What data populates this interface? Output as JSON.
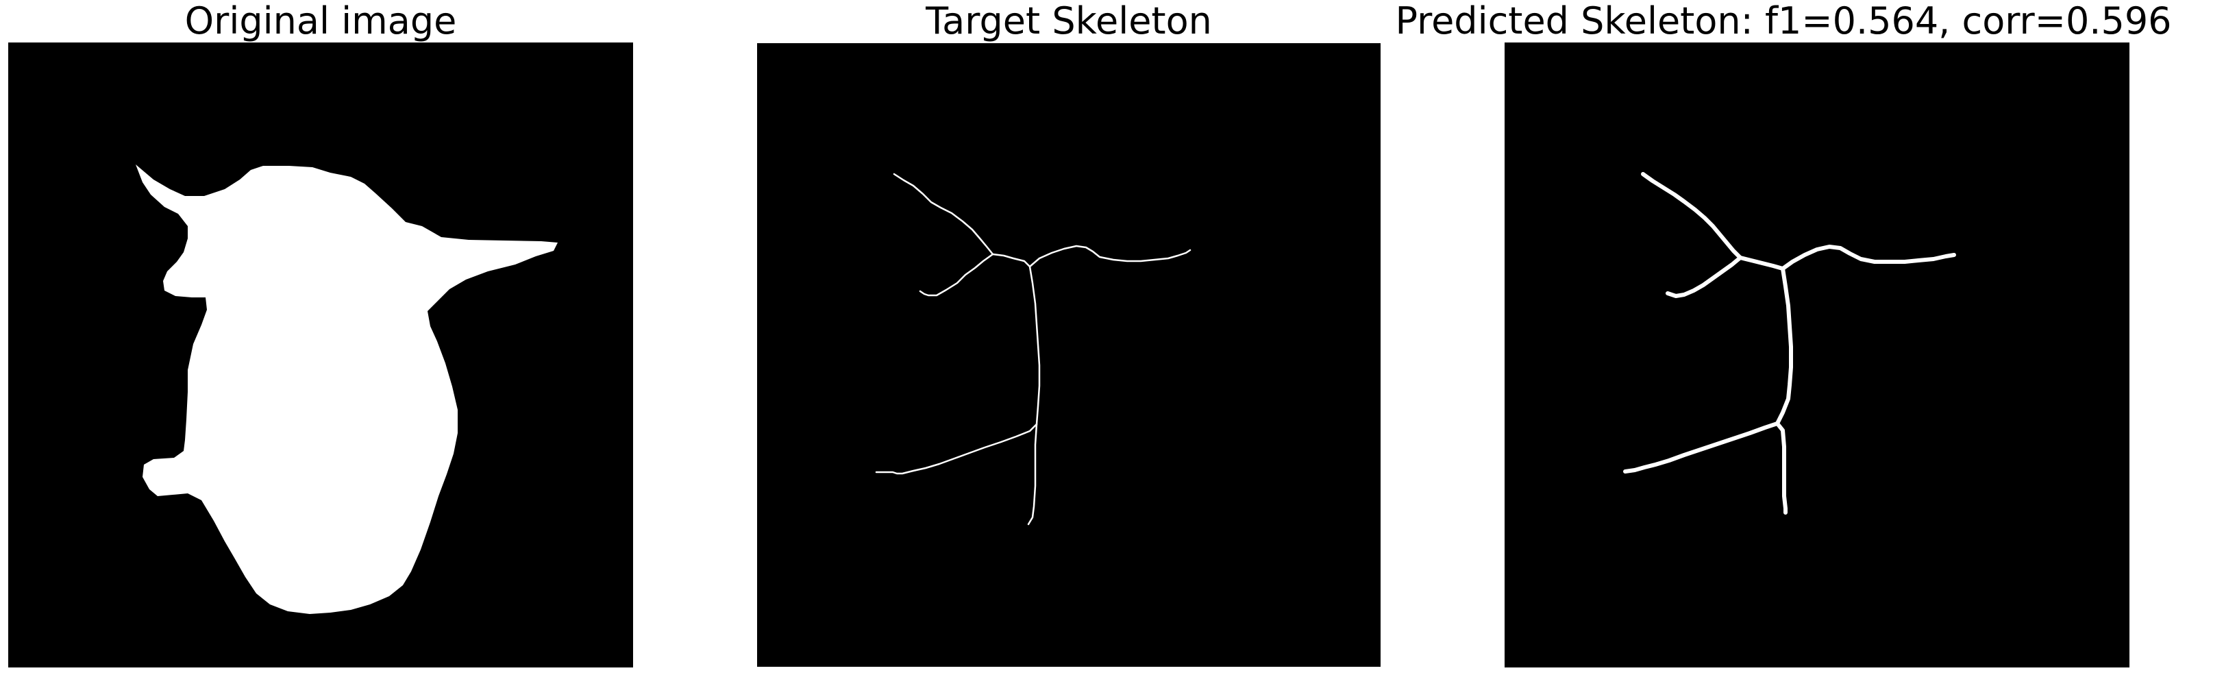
{
  "panels": [
    {
      "title": "Original image"
    },
    {
      "title": "Target Skeleton"
    },
    {
      "title": "Predicted Skeleton: f1=0.564, corr=0.596"
    }
  ],
  "colors": {
    "background": "#000000",
    "foreground": "#ffffff",
    "page": "#ffffff"
  }
}
